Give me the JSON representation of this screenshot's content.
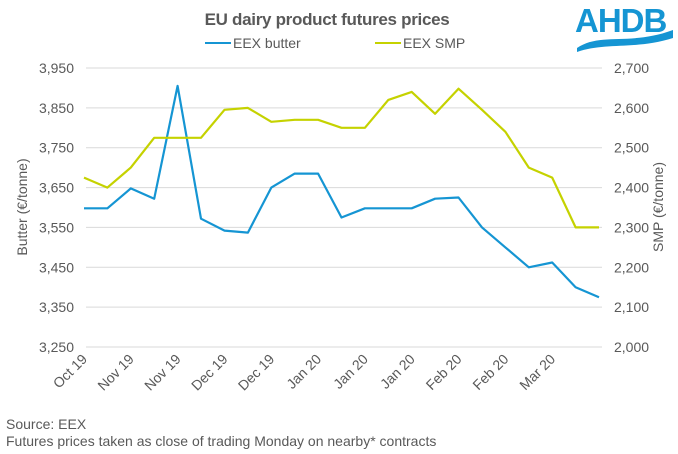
{
  "chart_data": {
    "type": "line",
    "title": "EU dairy product futures prices",
    "categories": [
      "Oct 19",
      "",
      "Nov 19",
      "",
      "Nov 19",
      "",
      "Dec 19",
      "",
      "Dec 19",
      "",
      "Jan 20",
      "",
      "Jan 20",
      "",
      "Jan 20",
      "",
      "Feb 20",
      "",
      "Feb 20",
      "",
      "Mar 20",
      "",
      ""
    ],
    "x_tick_labels": [
      "Oct 19",
      "Nov 19",
      "Nov 19",
      "Dec 19",
      "Dec 19",
      "Jan 20",
      "Jan 20",
      "Jan 20",
      "Feb 20",
      "Feb 20",
      "Mar 20"
    ],
    "series": [
      {
        "name": "EEX butter",
        "axis": "left",
        "color": "#1595d3",
        "values": [
          3598,
          3598,
          3648,
          3622,
          3905,
          3572,
          3542,
          3537,
          3650,
          3685,
          3685,
          3575,
          3598,
          3598,
          3598,
          3622,
          3625,
          3550,
          3500,
          3450,
          3462,
          3400,
          3375
        ]
      },
      {
        "name": "EEX SMP",
        "axis": "right",
        "color": "#c5d200",
        "values": [
          2425,
          2400,
          2450,
          2525,
          2525,
          2525,
          2595,
          2600,
          2565,
          2570,
          2570,
          2550,
          2550,
          2620,
          2640,
          2585,
          2648,
          2595,
          2540,
          2450,
          2425,
          2300,
          2300
        ]
      }
    ],
    "y_left": {
      "label": "Butter (€/tonne)",
      "range": [
        3250,
        3950
      ],
      "ticks": [
        "3,950",
        "3,850",
        "3,750",
        "3,650",
        "3,550",
        "3,450",
        "3,350",
        "3,250"
      ],
      "tick_values": [
        3950,
        3850,
        3750,
        3650,
        3550,
        3450,
        3350,
        3250
      ]
    },
    "y_right": {
      "label": "SMP (€/tonne)",
      "range": [
        2000,
        2700
      ],
      "ticks": [
        "2,700",
        "2,600",
        "2,500",
        "2,400",
        "2,300",
        "2,200",
        "2,100",
        "2,000"
      ],
      "tick_values": [
        2700,
        2600,
        2500,
        2400,
        2300,
        2200,
        2100,
        2000
      ]
    },
    "grid": true,
    "legend_position": "top-center"
  },
  "legend": [
    {
      "label": "EEX butter",
      "color": "#1595d3"
    },
    {
      "label": "EEX SMP",
      "color": "#c5d200"
    }
  ],
  "logo": {
    "text": "AHDB",
    "color": "#1595d3"
  },
  "footer": {
    "source": "Source: EEX",
    "note": "Futures prices taken as close of trading Monday on nearby* contracts"
  }
}
